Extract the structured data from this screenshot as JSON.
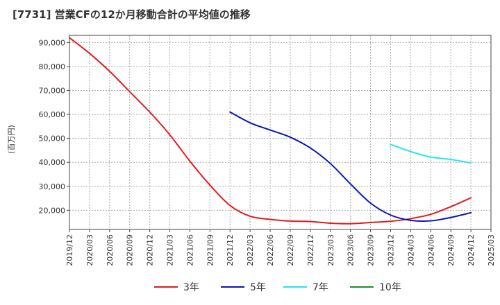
{
  "chart_data": {
    "type": "line",
    "title": "[7731]  営業CFの12か月移動合計の平均値の推移",
    "xlabel": "",
    "ylabel": "(百万円)",
    "ylim": [
      12000,
      93000
    ],
    "yticks": [
      20000,
      30000,
      40000,
      50000,
      60000,
      70000,
      80000,
      90000
    ],
    "ytick_labels": [
      "20,000",
      "30,000",
      "40,000",
      "50,000",
      "60,000",
      "70,000",
      "80,000",
      "90,000"
    ],
    "x_categories": [
      "2019/12",
      "2020/03",
      "2020/06",
      "2020/09",
      "2020/12",
      "2021/03",
      "2021/06",
      "2021/09",
      "2021/12",
      "2022/03",
      "2022/06",
      "2022/09",
      "2022/12",
      "2023/03",
      "2023/06",
      "2023/09",
      "2023/12",
      "2024/03",
      "2024/06",
      "2024/09",
      "2024/12",
      "2025/03"
    ],
    "grid": true,
    "legend_position": "bottom",
    "series": [
      {
        "name": "3年",
        "color": "#e31a1c",
        "points": [
          [
            "2019/12",
            92000
          ],
          [
            "2020/03",
            85500
          ],
          [
            "2020/06",
            78000
          ],
          [
            "2020/09",
            69500
          ],
          [
            "2020/12",
            61000
          ],
          [
            "2021/03",
            51500
          ],
          [
            "2021/06",
            40500
          ],
          [
            "2021/09",
            30500
          ],
          [
            "2021/12",
            22000
          ],
          [
            "2022/03",
            17500
          ],
          [
            "2022/06",
            16200
          ],
          [
            "2022/09",
            15500
          ],
          [
            "2022/12",
            15300
          ],
          [
            "2023/03",
            14600
          ],
          [
            "2023/06",
            14400
          ],
          [
            "2023/09",
            14900
          ],
          [
            "2023/12",
            15400
          ],
          [
            "2024/03",
            16500
          ],
          [
            "2024/06",
            18300
          ],
          [
            "2024/09",
            21500
          ],
          [
            "2024/12",
            25200
          ]
        ]
      },
      {
        "name": "5年",
        "color": "#0a14b4",
        "points": [
          [
            "2021/12",
            61000
          ],
          [
            "2022/03",
            56500
          ],
          [
            "2022/06",
            53500
          ],
          [
            "2022/09",
            50500
          ],
          [
            "2022/12",
            46000
          ],
          [
            "2023/03",
            39500
          ],
          [
            "2023/06",
            31000
          ],
          [
            "2023/09",
            23000
          ],
          [
            "2023/12",
            18000
          ],
          [
            "2024/03",
            15800
          ],
          [
            "2024/06",
            15600
          ],
          [
            "2024/09",
            17000
          ],
          [
            "2024/12",
            19000
          ]
        ]
      },
      {
        "name": "7年",
        "color": "#22e5f0",
        "points": [
          [
            "2023/12",
            47500
          ],
          [
            "2024/03",
            44500
          ],
          [
            "2024/06",
            42200
          ],
          [
            "2024/09",
            41200
          ],
          [
            "2024/12",
            39800
          ]
        ]
      },
      {
        "name": "10年",
        "color": "#228b22",
        "points": []
      }
    ]
  }
}
